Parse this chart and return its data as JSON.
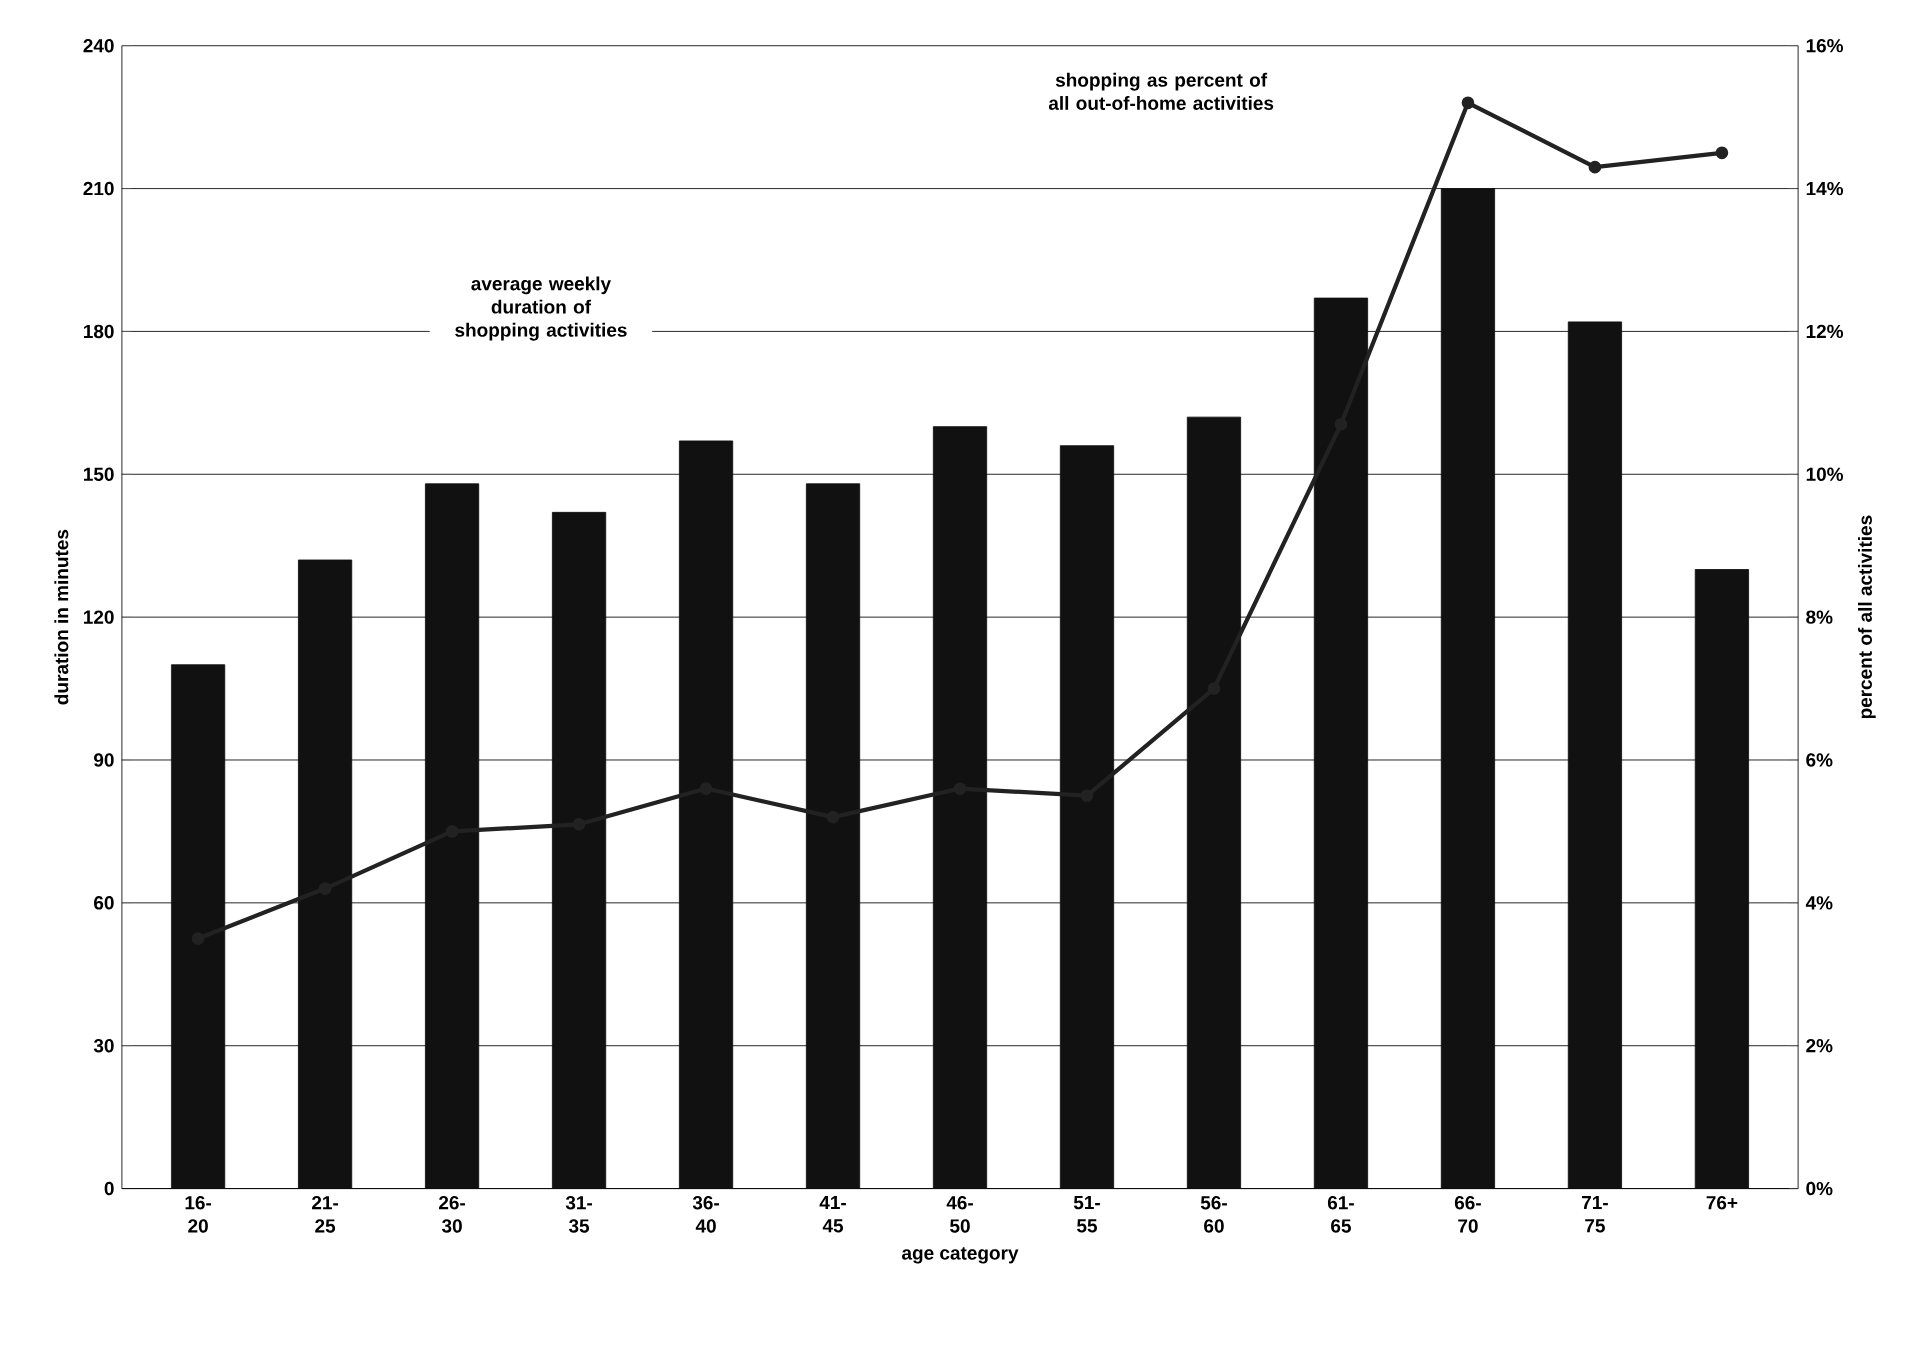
{
  "chart_data": {
    "type": "bar",
    "xlabel": "age category",
    "ylabel": "duration in minutes",
    "y2label": "percent of all activities",
    "categories": [
      "16- 20",
      "21- 25",
      "26- 30",
      "31- 35",
      "36- 40",
      "41- 45",
      "46- 50",
      "51- 55",
      "56- 60",
      "61- 65",
      "66- 70",
      "71- 75",
      "76+"
    ],
    "series": [
      {
        "color": "#111111",
        "values": [
          110,
          132,
          148,
          142,
          157,
          148,
          160,
          156,
          162,
          187,
          210,
          182,
          130
        ]
      },
      {
        "type": "line",
        "axis": "y2",
        "color": "#222222",
        "marker": "circle",
        "values": [
          3.5,
          4.2,
          5.0,
          5.1,
          5.6,
          5.2,
          5.6,
          5.5,
          7.0,
          10.7,
          15.2,
          14.3,
          14.5
        ]
      }
    ],
    "ylim": [
      0,
      240
    ],
    "yticks": [
      0,
      30,
      60,
      90,
      120,
      150,
      180,
      210,
      240
    ],
    "y2lim": [
      0,
      16
    ],
    "y2ticks": [
      {
        "value": 0,
        "label": "0%"
      },
      {
        "value": 2,
        "label": "2%"
      },
      {
        "value": 4,
        "label": "4%"
      },
      {
        "value": 6,
        "label": "6%"
      },
      {
        "value": 8,
        "label": "8%"
      },
      {
        "value": 10,
        "label": "10%"
      },
      {
        "value": 12,
        "label": "12%"
      },
      {
        "value": 14,
        "label": "14%"
      },
      {
        "value": 16,
        "label": "16%"
      }
    ],
    "grid": "y",
    "annotations": [
      "average weekly duration of shopping activities",
      "shopping as percent of all out-of-home activities"
    ]
  }
}
